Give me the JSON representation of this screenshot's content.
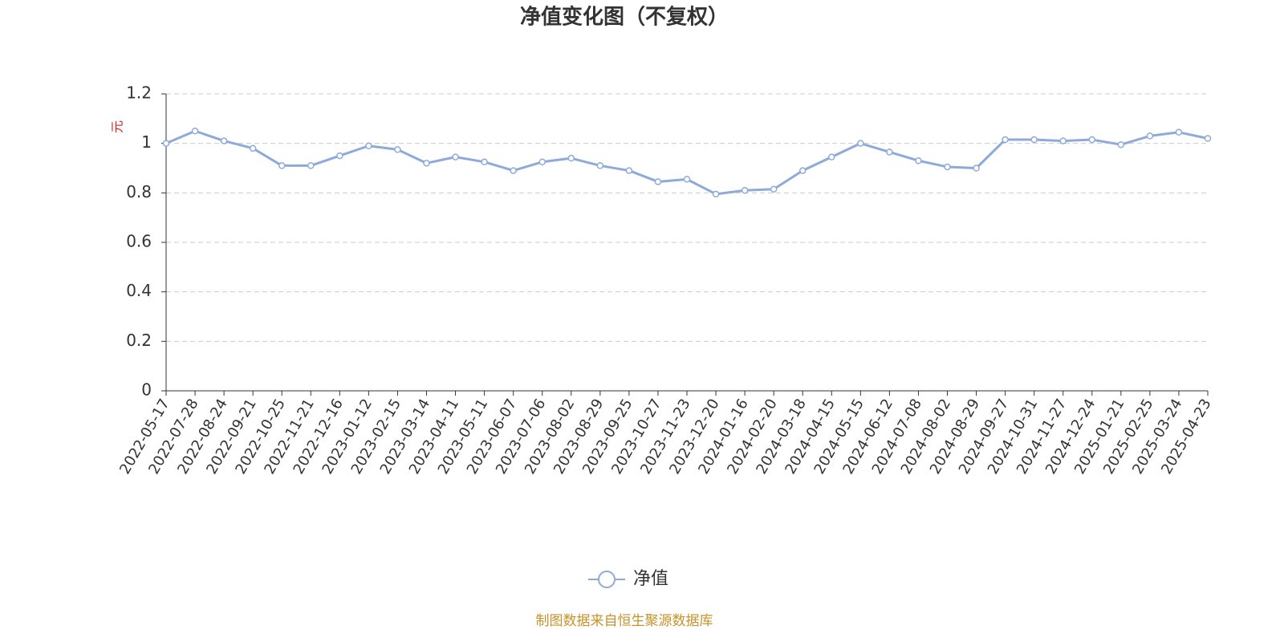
{
  "chart_data": {
    "type": "line",
    "title": "净值变化图（不复权）",
    "y_label": "元",
    "categories": [
      "2022-05-17",
      "2022-07-28",
      "2022-08-24",
      "2022-09-21",
      "2022-10-25",
      "2022-11-21",
      "2022-12-16",
      "2023-01-12",
      "2023-02-15",
      "2023-03-14",
      "2023-04-11",
      "2023-05-11",
      "2023-06-07",
      "2023-07-06",
      "2023-08-02",
      "2023-08-29",
      "2023-09-25",
      "2023-10-27",
      "2023-11-23",
      "2023-12-20",
      "2024-01-16",
      "2024-02-20",
      "2024-03-18",
      "2024-04-15",
      "2024-05-15",
      "2024-06-12",
      "2024-07-08",
      "2024-08-02",
      "2024-08-29",
      "2024-09-27",
      "2024-10-31",
      "2024-11-27",
      "2024-12-24",
      "2025-01-21",
      "2025-02-25",
      "2025-03-24",
      "2025-04-23"
    ],
    "series": [
      {
        "name": "净值",
        "color": "#8eaadb",
        "values": [
          1.0,
          1.05,
          1.01,
          0.98,
          0.91,
          0.91,
          0.95,
          0.99,
          0.975,
          0.92,
          0.945,
          0.925,
          0.89,
          0.925,
          0.94,
          0.91,
          0.89,
          0.845,
          0.855,
          0.795,
          0.81,
          0.815,
          0.89,
          0.945,
          1.0,
          0.965,
          0.93,
          0.905,
          0.9,
          1.015,
          1.015,
          1.01,
          1.015,
          0.995,
          1.03,
          1.045,
          1.02
        ]
      }
    ],
    "ylim": [
      0,
      1.2
    ],
    "yticks": [
      0,
      0.2,
      0.4,
      0.6,
      0.8,
      1,
      1.2
    ],
    "grid": true,
    "legend": "bottom",
    "source": "制图数据来自恒生聚源数据库"
  }
}
